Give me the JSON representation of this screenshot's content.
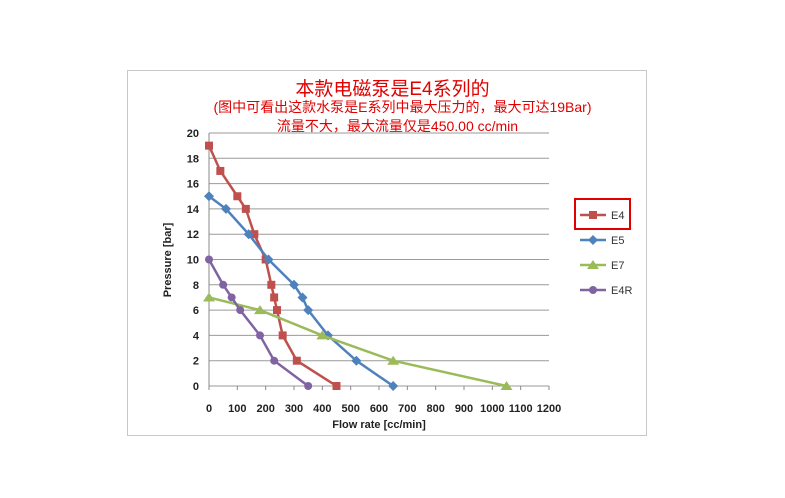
{
  "chart_data": {
    "type": "line",
    "title": "本款电磁泵是E4系列的",
    "subtitle": [
      "(图中可看出这款水泵是E系列中最大压力的，最大可达19Bar)",
      "流量不大，最大流量仅是450.00 cc/min"
    ],
    "xlabel": "Flow rate [cc/min]",
    "ylabel": "Pressure [bar]",
    "xlim": [
      0,
      1200
    ],
    "ylim": [
      0,
      20
    ],
    "xticks": [
      0,
      100,
      200,
      300,
      400,
      500,
      600,
      700,
      800,
      900,
      1000,
      1100,
      1200
    ],
    "yticks": [
      0,
      2,
      4,
      6,
      8,
      10,
      12,
      14,
      16,
      18,
      20
    ],
    "grid": "horizontal",
    "legend_position": "right",
    "series": [
      {
        "name": "E4",
        "color": "#c0504d",
        "marker": "square",
        "highlighted": true,
        "x": [
          0,
          40,
          100,
          130,
          160,
          200,
          220,
          230,
          240,
          260,
          310,
          450
        ],
        "y": [
          19,
          17,
          15,
          14,
          12,
          10,
          8,
          7,
          6,
          4,
          2,
          0
        ]
      },
      {
        "name": "E5",
        "color": "#4f81bd",
        "marker": "diamond",
        "x": [
          0,
          60,
          140,
          210,
          300,
          330,
          350,
          420,
          520,
          650
        ],
        "y": [
          15,
          14,
          12,
          10,
          8,
          7,
          6,
          4,
          2,
          0
        ]
      },
      {
        "name": "E7",
        "color": "#9bbb59",
        "marker": "triangle",
        "x": [
          0,
          180,
          400,
          650,
          1050
        ],
        "y": [
          7,
          6,
          4,
          2,
          0
        ]
      },
      {
        "name": "E4R",
        "color": "#8064a2",
        "marker": "circle",
        "x": [
          0,
          50,
          80,
          110,
          180,
          230,
          350
        ],
        "y": [
          10,
          8,
          7,
          6,
          4,
          2,
          0
        ]
      }
    ]
  }
}
